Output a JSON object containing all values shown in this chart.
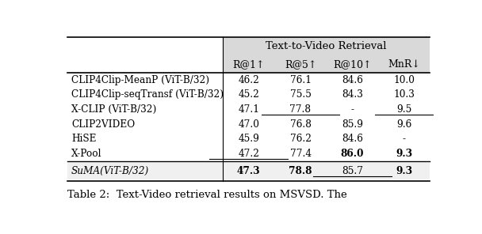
{
  "title": "Text-to-Video Retrieval",
  "caption": "Table 2:  Text-Video retrieval results on MSVSD. The",
  "col_headers": [
    "R@1↑",
    "R@5↑",
    "R@10↑",
    "MnR↓"
  ],
  "rows": [
    {
      "method": "CLIP4Clip-MeanP (ViT-B/32)",
      "values": [
        "46.2",
        "76.1",
        "84.6",
        "10.0"
      ],
      "bold": [
        false,
        false,
        false,
        false
      ],
      "underline": [
        false,
        false,
        false,
        false
      ]
    },
    {
      "method": "CLIP4Clip-seqTransf (ViT-B/32)",
      "values": [
        "45.2",
        "75.5",
        "84.3",
        "10.3"
      ],
      "bold": [
        false,
        false,
        false,
        false
      ],
      "underline": [
        false,
        false,
        false,
        false
      ]
    },
    {
      "method": "X-CLIP (ViT-B/32)",
      "values": [
        "47.1",
        "77.8",
        "-",
        "9.5"
      ],
      "bold": [
        false,
        false,
        false,
        false
      ],
      "underline": [
        false,
        true,
        false,
        true
      ]
    },
    {
      "method": "CLIP2VIDEO",
      "values": [
        "47.0",
        "76.8",
        "85.9",
        "9.6"
      ],
      "bold": [
        false,
        false,
        false,
        false
      ],
      "underline": [
        false,
        false,
        false,
        false
      ]
    },
    {
      "method": "HiSE",
      "values": [
        "45.9",
        "76.2",
        "84.6",
        "-"
      ],
      "bold": [
        false,
        false,
        false,
        false
      ],
      "underline": [
        false,
        false,
        false,
        false
      ]
    },
    {
      "method": "X-Pool",
      "values": [
        "47.2",
        "77.4",
        "86.0",
        "9.3"
      ],
      "bold": [
        false,
        false,
        true,
        true
      ],
      "underline": [
        true,
        false,
        false,
        false
      ]
    }
  ],
  "our_row": {
    "method": "SuMA(ViT-B/32)",
    "values": [
      "47.3",
      "78.8",
      "85.7",
      "9.3"
    ],
    "bold": [
      true,
      true,
      false,
      true
    ],
    "underline": [
      false,
      false,
      true,
      false
    ]
  },
  "bg_header": "#d9d9d9",
  "bg_our": "#f0f0f0",
  "font_size": 9.0,
  "caption_font_size": 9.5
}
